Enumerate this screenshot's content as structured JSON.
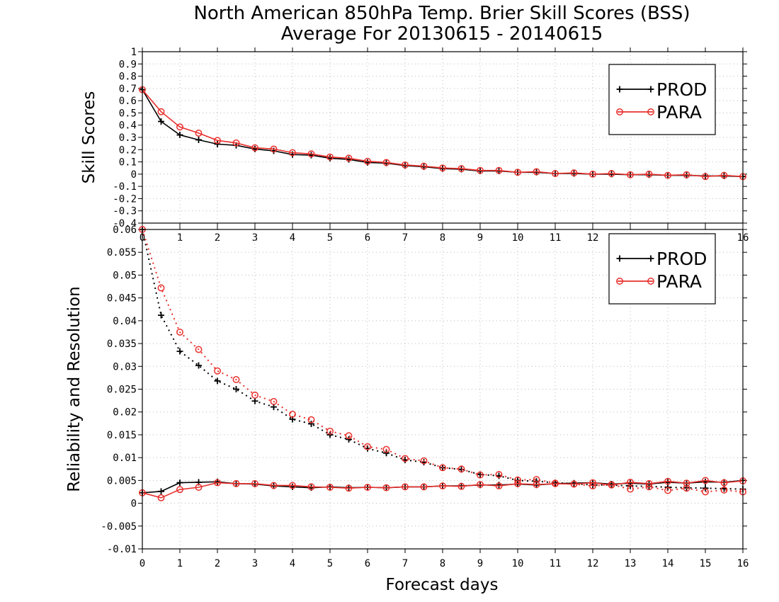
{
  "title": "North American 850hPa Temp. Brier Skill Scores (BSS)",
  "subtitle": "Average For 20130615 - 20140615",
  "xlabel": "Forecast days",
  "chart_data": [
    {
      "type": "line",
      "ylabel": "Skill Scores",
      "xlim": [
        0,
        16
      ],
      "ylim": [
        -0.4,
        1
      ],
      "x_ticks": [
        "0",
        "1",
        "2",
        "3",
        "4",
        "5",
        "6",
        "7",
        "8",
        "9",
        "10",
        "11",
        "12",
        "13",
        "14",
        "15",
        "16"
      ],
      "y_ticks": [
        "-0.4",
        "-0.3",
        "-0.2",
        "-0.1",
        "0",
        "0.1",
        "0.2",
        "0.3",
        "0.4",
        "0.5",
        "0.6",
        "0.7",
        "0.8",
        "0.9",
        "1"
      ],
      "grid": true,
      "legend": "top-right",
      "x": [
        0,
        0.5,
        1,
        1.5,
        2,
        2.5,
        3,
        3.5,
        4,
        4.5,
        5,
        5.5,
        6,
        6.5,
        7,
        7.5,
        8,
        8.5,
        9,
        9.5,
        10,
        10.5,
        11,
        11.5,
        12,
        12.5,
        13,
        13.5,
        14,
        14.5,
        15,
        15.5,
        16
      ],
      "series": [
        {
          "name": "PROD",
          "color": "#000000",
          "marker": "plus",
          "style": "solid",
          "values": [
            0.69,
            0.43,
            0.32,
            0.28,
            0.245,
            0.235,
            0.205,
            0.19,
            0.16,
            0.155,
            0.13,
            0.12,
            0.095,
            0.09,
            0.07,
            0.06,
            0.045,
            0.04,
            0.025,
            0.025,
            0.015,
            0.015,
            0.005,
            0.005,
            0.0,
            0.0,
            -0.005,
            -0.005,
            -0.01,
            -0.01,
            -0.015,
            -0.015,
            -0.02
          ]
        },
        {
          "name": "PARA",
          "color": "#e8302c",
          "marker": "circle",
          "style": "solid",
          "values": [
            0.69,
            0.51,
            0.385,
            0.335,
            0.275,
            0.255,
            0.215,
            0.205,
            0.175,
            0.165,
            0.14,
            0.13,
            0.105,
            0.095,
            0.075,
            0.065,
            0.05,
            0.045,
            0.03,
            0.03,
            0.015,
            0.02,
            0.005,
            0.01,
            0.0,
            0.005,
            -0.005,
            0.0,
            -0.01,
            -0.005,
            -0.02,
            -0.01,
            -0.02
          ]
        }
      ]
    },
    {
      "type": "line",
      "ylabel": "Reliability and Resolution",
      "xlim": [
        0,
        16
      ],
      "ylim": [
        -0.01,
        0.06
      ],
      "x_ticks": [
        "0",
        "1",
        "2",
        "3",
        "4",
        "5",
        "6",
        "7",
        "8",
        "9",
        "10",
        "11",
        "12",
        "13",
        "14",
        "15",
        "16"
      ],
      "y_ticks": [
        "-0.01",
        "-0.005",
        "0",
        "0.005",
        "0.01",
        "0.015",
        "0.02",
        "0.025",
        "0.03",
        "0.035",
        "0.04",
        "0.045",
        "0.05",
        "0.055",
        "0.06"
      ],
      "grid": true,
      "legend": "top-right",
      "x": [
        0,
        0.5,
        1,
        1.5,
        2,
        2.5,
        3,
        3.5,
        4,
        4.5,
        5,
        5.5,
        6,
        6.5,
        7,
        7.5,
        8,
        8.5,
        9,
        9.5,
        10,
        10.5,
        11,
        11.5,
        12,
        12.5,
        13,
        13.5,
        14,
        14.5,
        15,
        15.5,
        16
      ],
      "series": [
        {
          "name": "PROD",
          "color": "#000000",
          "marker": "plus",
          "style": "dotted",
          "values": [
            0.06,
            0.0412,
            0.0333,
            0.0302,
            0.0268,
            0.025,
            0.0224,
            0.0211,
            0.0184,
            0.0174,
            0.015,
            0.014,
            0.012,
            0.011,
            0.0095,
            0.009,
            0.0078,
            0.0074,
            0.0063,
            0.006,
            0.005,
            0.0048,
            0.0045,
            0.0043,
            0.004,
            0.004,
            0.0038,
            0.0037,
            0.0035,
            0.0034,
            0.0033,
            0.0032,
            0.0031
          ]
        },
        {
          "name": "PARA",
          "color": "#e8302c",
          "marker": "circle",
          "style": "dotted",
          "values": [
            0.06,
            0.0472,
            0.0375,
            0.0337,
            0.029,
            0.0271,
            0.0237,
            0.0223,
            0.0195,
            0.0183,
            0.0158,
            0.0148,
            0.0124,
            0.0118,
            0.0098,
            0.0093,
            0.0078,
            0.0075,
            0.0062,
            0.0063,
            0.0051,
            0.0052,
            0.0044,
            0.0042,
            0.0038,
            0.0041,
            0.0031,
            0.0036,
            0.0028,
            0.0033,
            0.0025,
            0.0029,
            0.0025
          ]
        },
        {
          "name": "PROD",
          "color": "#000000",
          "marker": "plus",
          "style": "solid",
          "values": [
            0.0023,
            0.0026,
            0.0045,
            0.0046,
            0.0047,
            0.0043,
            0.0042,
            0.0038,
            0.0036,
            0.0034,
            0.0036,
            0.0034,
            0.0035,
            0.0034,
            0.0036,
            0.0036,
            0.0038,
            0.0038,
            0.004,
            0.004,
            0.0042,
            0.004,
            0.0043,
            0.0044,
            0.0045,
            0.0042,
            0.0044,
            0.0042,
            0.0046,
            0.0044,
            0.0047,
            0.0046,
            0.005
          ]
        },
        {
          "name": "PARA",
          "color": "#e8302c",
          "marker": "circle",
          "style": "solid",
          "values": [
            0.0023,
            0.0012,
            0.003,
            0.0035,
            0.0045,
            0.0043,
            0.0043,
            0.0039,
            0.0039,
            0.0036,
            0.0035,
            0.0033,
            0.0035,
            0.0034,
            0.0036,
            0.0036,
            0.0038,
            0.0037,
            0.0041,
            0.0038,
            0.0043,
            0.0041,
            0.0043,
            0.0042,
            0.0045,
            0.004,
            0.0046,
            0.0043,
            0.0048,
            0.0044,
            0.005,
            0.0045,
            0.0049
          ]
        }
      ]
    }
  ]
}
